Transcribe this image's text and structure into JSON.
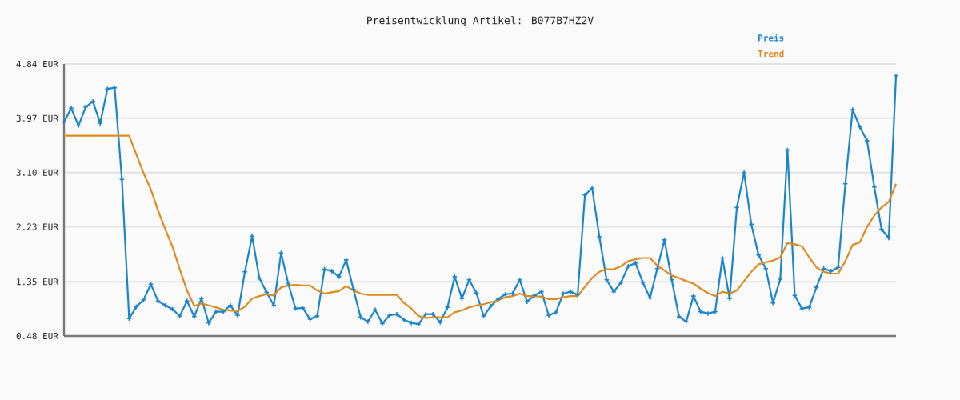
{
  "chart_data": {
    "type": "line",
    "title": "Preisentwicklung Artikel: B077B7HZ2V",
    "categories": [
      null,
      null,
      null,
      null,
      null,
      null,
      null,
      null,
      null,
      null,
      null,
      null,
      null,
      null,
      null,
      null,
      null,
      null,
      null,
      null,
      null,
      null,
      null,
      null,
      null,
      null,
      null,
      null,
      null,
      null,
      null,
      null,
      null,
      null,
      null,
      null,
      null,
      null,
      null,
      null,
      null,
      null,
      null,
      null,
      null,
      null,
      null,
      null,
      null,
      null,
      null,
      null,
      null,
      null,
      null,
      null,
      null,
      null,
      null,
      null,
      null,
      null,
      null,
      null,
      null,
      null,
      null,
      null,
      null,
      null,
      null,
      null,
      null,
      null,
      null,
      null,
      null,
      null,
      null,
      null,
      null,
      null,
      null,
      null,
      null,
      null,
      null,
      null,
      null,
      null,
      null,
      null,
      null,
      null,
      null,
      null,
      null,
      null,
      null,
      null,
      null,
      null,
      null,
      null,
      null,
      null,
      null,
      null,
      null,
      null,
      null,
      null,
      null,
      null,
      null,
      null
    ],
    "series": [
      {
        "name": "Preis",
        "color": "#1a84cc",
        "marker": "cross",
        "values": [
          3.91,
          4.13,
          3.85,
          4.15,
          4.24,
          3.89,
          4.44,
          4.46,
          2.99,
          0.76,
          0.95,
          1.06,
          1.31,
          1.04,
          0.97,
          0.91,
          0.8,
          1.04,
          0.79,
          1.08,
          0.69,
          0.87,
          0.87,
          0.97,
          0.81,
          1.51,
          2.08,
          1.41,
          1.18,
          0.97,
          1.81,
          1.32,
          0.92,
          0.93,
          0.75,
          0.8,
          1.55,
          1.52,
          1.43,
          1.7,
          1.23,
          0.78,
          0.71,
          0.9,
          0.68,
          0.81,
          0.83,
          0.74,
          0.69,
          0.67,
          0.83,
          0.83,
          0.7,
          0.94,
          1.43,
          1.08,
          1.38,
          1.17,
          0.8,
          0.96,
          1.07,
          1.15,
          1.16,
          1.38,
          1.03,
          1.13,
          1.19,
          0.81,
          0.86,
          1.16,
          1.19,
          1.14,
          2.74,
          2.85,
          2.07,
          1.38,
          1.19,
          1.34,
          1.6,
          1.65,
          1.34,
          1.09,
          1.56,
          2.02,
          1.38,
          0.79,
          0.71,
          1.12,
          0.87,
          0.84,
          0.87,
          1.73,
          1.08,
          2.54,
          3.1,
          2.27,
          1.78,
          1.56,
          1.01,
          1.39,
          3.46,
          1.13,
          0.92,
          0.94,
          1.26,
          1.56,
          1.52,
          1.58,
          2.92,
          4.11,
          3.83,
          3.61,
          2.87,
          2.19,
          2.05,
          4.65
        ]
      },
      {
        "name": "Trend",
        "color": "#e08a1e",
        "marker": "none",
        "values": [
          3.69,
          3.69,
          3.69,
          3.69,
          3.69,
          3.69,
          3.69,
          3.69,
          3.69,
          3.69,
          3.39,
          3.09,
          2.83,
          2.49,
          2.19,
          1.91,
          1.55,
          1.21,
          0.96,
          1.0,
          0.97,
          0.94,
          0.9,
          0.89,
          0.88,
          0.95,
          1.08,
          1.12,
          1.15,
          1.13,
          1.26,
          1.29,
          1.3,
          1.29,
          1.29,
          1.21,
          1.16,
          1.18,
          1.2,
          1.28,
          1.21,
          1.16,
          1.14,
          1.14,
          1.14,
          1.14,
          1.14,
          1.01,
          0.92,
          0.8,
          0.77,
          0.78,
          0.78,
          0.78,
          0.86,
          0.89,
          0.94,
          0.97,
          0.99,
          1.02,
          1.05,
          1.1,
          1.12,
          1.16,
          1.12,
          1.12,
          1.11,
          1.07,
          1.07,
          1.1,
          1.12,
          1.12,
          1.27,
          1.41,
          1.51,
          1.55,
          1.55,
          1.6,
          1.68,
          1.71,
          1.73,
          1.73,
          1.61,
          1.53,
          1.45,
          1.41,
          1.36,
          1.32,
          1.24,
          1.17,
          1.12,
          1.19,
          1.16,
          1.21,
          1.36,
          1.51,
          1.63,
          1.66,
          1.69,
          1.74,
          1.97,
          1.95,
          1.92,
          1.74,
          1.58,
          1.51,
          1.48,
          1.48,
          1.68,
          1.94,
          1.98,
          2.23,
          2.41,
          2.54,
          2.63,
          2.92
        ]
      }
    ],
    "ylim": [
      0.48,
      4.84
    ],
    "yticks": [
      {
        "value": 0.48,
        "label": "0.48 EUR"
      },
      {
        "value": 1.35,
        "label": "1.35 EUR"
      },
      {
        "value": 2.23,
        "label": "2.23 EUR"
      },
      {
        "value": 3.1,
        "label": "3.10 EUR"
      },
      {
        "value": 3.97,
        "label": "3.97 EUR"
      },
      {
        "value": 4.84,
        "label": "4.84 EUR"
      }
    ],
    "grid": "y",
    "legend": "top right",
    "tick_labels": "y"
  }
}
